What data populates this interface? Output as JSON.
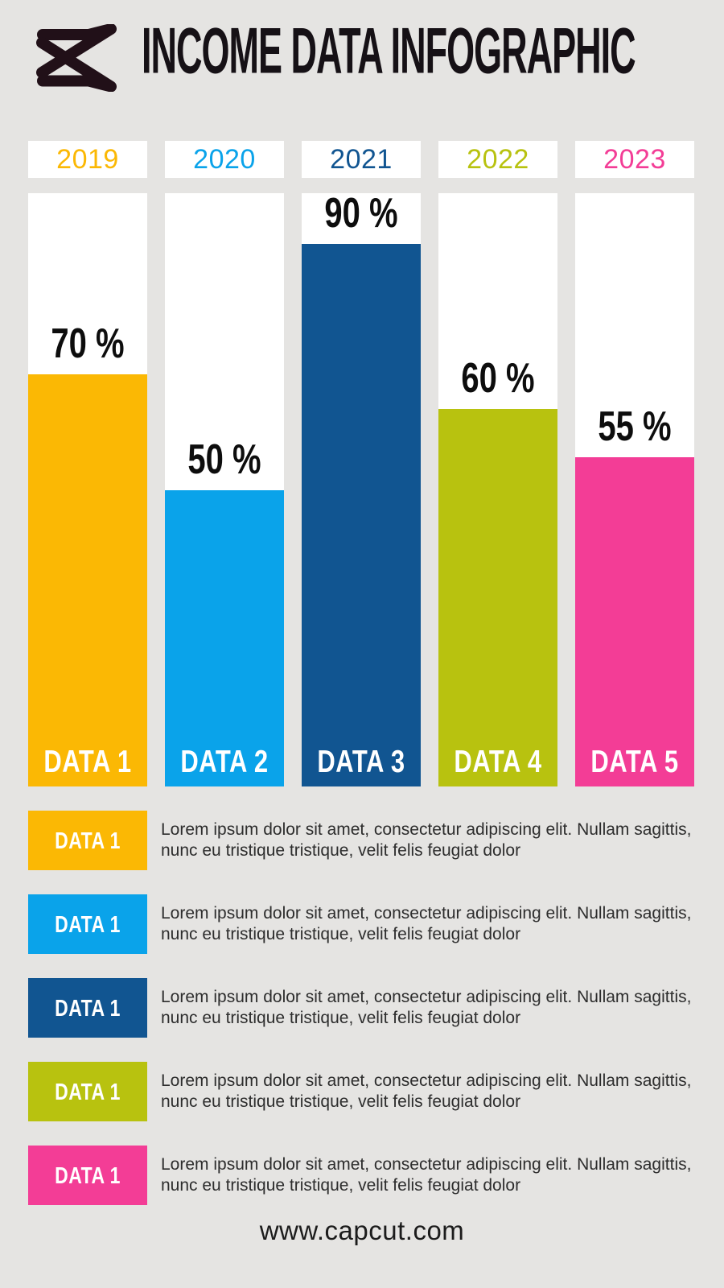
{
  "header": {
    "title": "INCOME DATA INFOGRAPHIC",
    "logo": "capcut-logo"
  },
  "colors": {
    "background": "#E5E4E2",
    "card": "#FFFFFF",
    "logo_ink": "#211018",
    "title_ink": "#161116",
    "body_text": "#2D2D2D",
    "value_ink": "#0D0D0D",
    "footer_ink": "#1C1C1C"
  },
  "chart_data": {
    "type": "bar",
    "title": "INCOME DATA INFOGRAPHIC",
    "categories": [
      "2019",
      "2020",
      "2021",
      "2022",
      "2023"
    ],
    "series_labels": [
      "DATA 1",
      "DATA 2",
      "DATA 3",
      "DATA 4",
      "DATA 5"
    ],
    "values": [
      70,
      50,
      90,
      60,
      55
    ],
    "value_labels": [
      "70 %",
      "50 %",
      "90 %",
      "60 %",
      "55 %"
    ],
    "bar_colors": [
      "#FBB804",
      "#0AA3EA",
      "#115591",
      "#B8C20F",
      "#F33D96"
    ],
    "bar_height_pct": [
      69.5,
      50.0,
      91.4,
      63.6,
      55.5
    ],
    "unit": "%",
    "ylim": [
      0,
      100
    ],
    "grid": false,
    "legend_position": "below",
    "track_background": "#FFFFFF"
  },
  "legend": {
    "items": [
      {
        "label": "DATA 1",
        "color": "#FBB804",
        "description": "Lorem ipsum dolor sit amet, consectetur adipiscing elit. Nullam sagittis, nunc eu tristique tristique, velit felis feugiat dolor"
      },
      {
        "label": "DATA 1",
        "color": "#0AA3EA",
        "description": "Lorem ipsum dolor sit amet, consectetur adipiscing elit. Nullam sagittis, nunc eu tristique tristique, velit felis feugiat dolor"
      },
      {
        "label": "DATA 1",
        "color": "#115591",
        "description": "Lorem ipsum dolor sit amet, consectetur adipiscing elit. Nullam sagittis, nunc eu tristique tristique, velit felis feugiat dolor"
      },
      {
        "label": "DATA 1",
        "color": "#B8C20F",
        "description": "Lorem ipsum dolor sit amet, consectetur adipiscing elit. Nullam sagittis, nunc eu tristique tristique, velit felis feugiat dolor"
      },
      {
        "label": "DATA 1",
        "color": "#F33D96",
        "description": "Lorem ipsum dolor sit amet, consectetur adipiscing elit. Nullam sagittis, nunc eu tristique tristique, velit felis feugiat dolor"
      }
    ]
  },
  "footer": {
    "url": "www.capcut.com"
  }
}
